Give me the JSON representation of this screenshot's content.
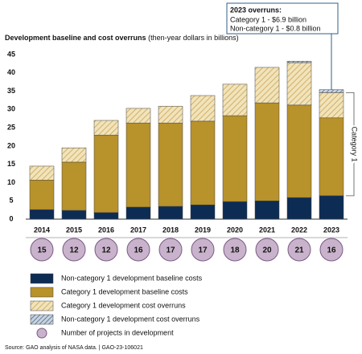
{
  "chart_data": {
    "type": "bar",
    "stacked": true,
    "title": "Development baseline and cost overruns",
    "subtitle": "(then-year dollars in billions)",
    "categories": [
      "2014",
      "2015",
      "2016",
      "2017",
      "2018",
      "2019",
      "2020",
      "2021",
      "2022",
      "2023"
    ],
    "series": [
      {
        "name": "Non-category 1 development baseline costs",
        "color": "#0d2c54",
        "pattern": "solid",
        "values": [
          2.6,
          2.4,
          1.8,
          3.3,
          3.5,
          3.9,
          4.8,
          5.0,
          5.9,
          6.4
        ]
      },
      {
        "name": "Category 1 development baseline costs",
        "color": "#b8922a",
        "pattern": "solid",
        "values": [
          8.1,
          13.2,
          21.2,
          23.0,
          22.8,
          22.9,
          23.5,
          26.8,
          25.3,
          21.3
        ]
      },
      {
        "name": "Category 1 development cost overruns",
        "color": "#f1e3bb",
        "pattern": "hatch",
        "values": [
          3.8,
          3.9,
          4.0,
          4.0,
          4.6,
          7.0,
          8.6,
          9.7,
          11.6,
          6.9
        ]
      },
      {
        "name": "Non-category 1 development cost overruns",
        "color": "#c8d3e0",
        "pattern": "hatch",
        "values": [
          0,
          0,
          0,
          0,
          0,
          0,
          0,
          0,
          0.4,
          0.8
        ]
      }
    ],
    "projects": {
      "name": "Number of projects in development",
      "color": "#c9b3cc",
      "values": [
        15,
        12,
        12,
        16,
        17,
        17,
        18,
        20,
        21,
        16
      ]
    },
    "ylim": [
      0,
      45
    ],
    "yticks": [
      0,
      5,
      10,
      15,
      20,
      25,
      30,
      35,
      40,
      45
    ],
    "grid": false,
    "annotation": {
      "title": "2023 overruns:",
      "lines": [
        "Category 1 - $6.9 billion",
        "Non-category 1 - $0.8 billion"
      ]
    },
    "bracket_label": "Category 1",
    "source": "Source: GAO analysis of NASA data. | GAO-23-106021"
  }
}
